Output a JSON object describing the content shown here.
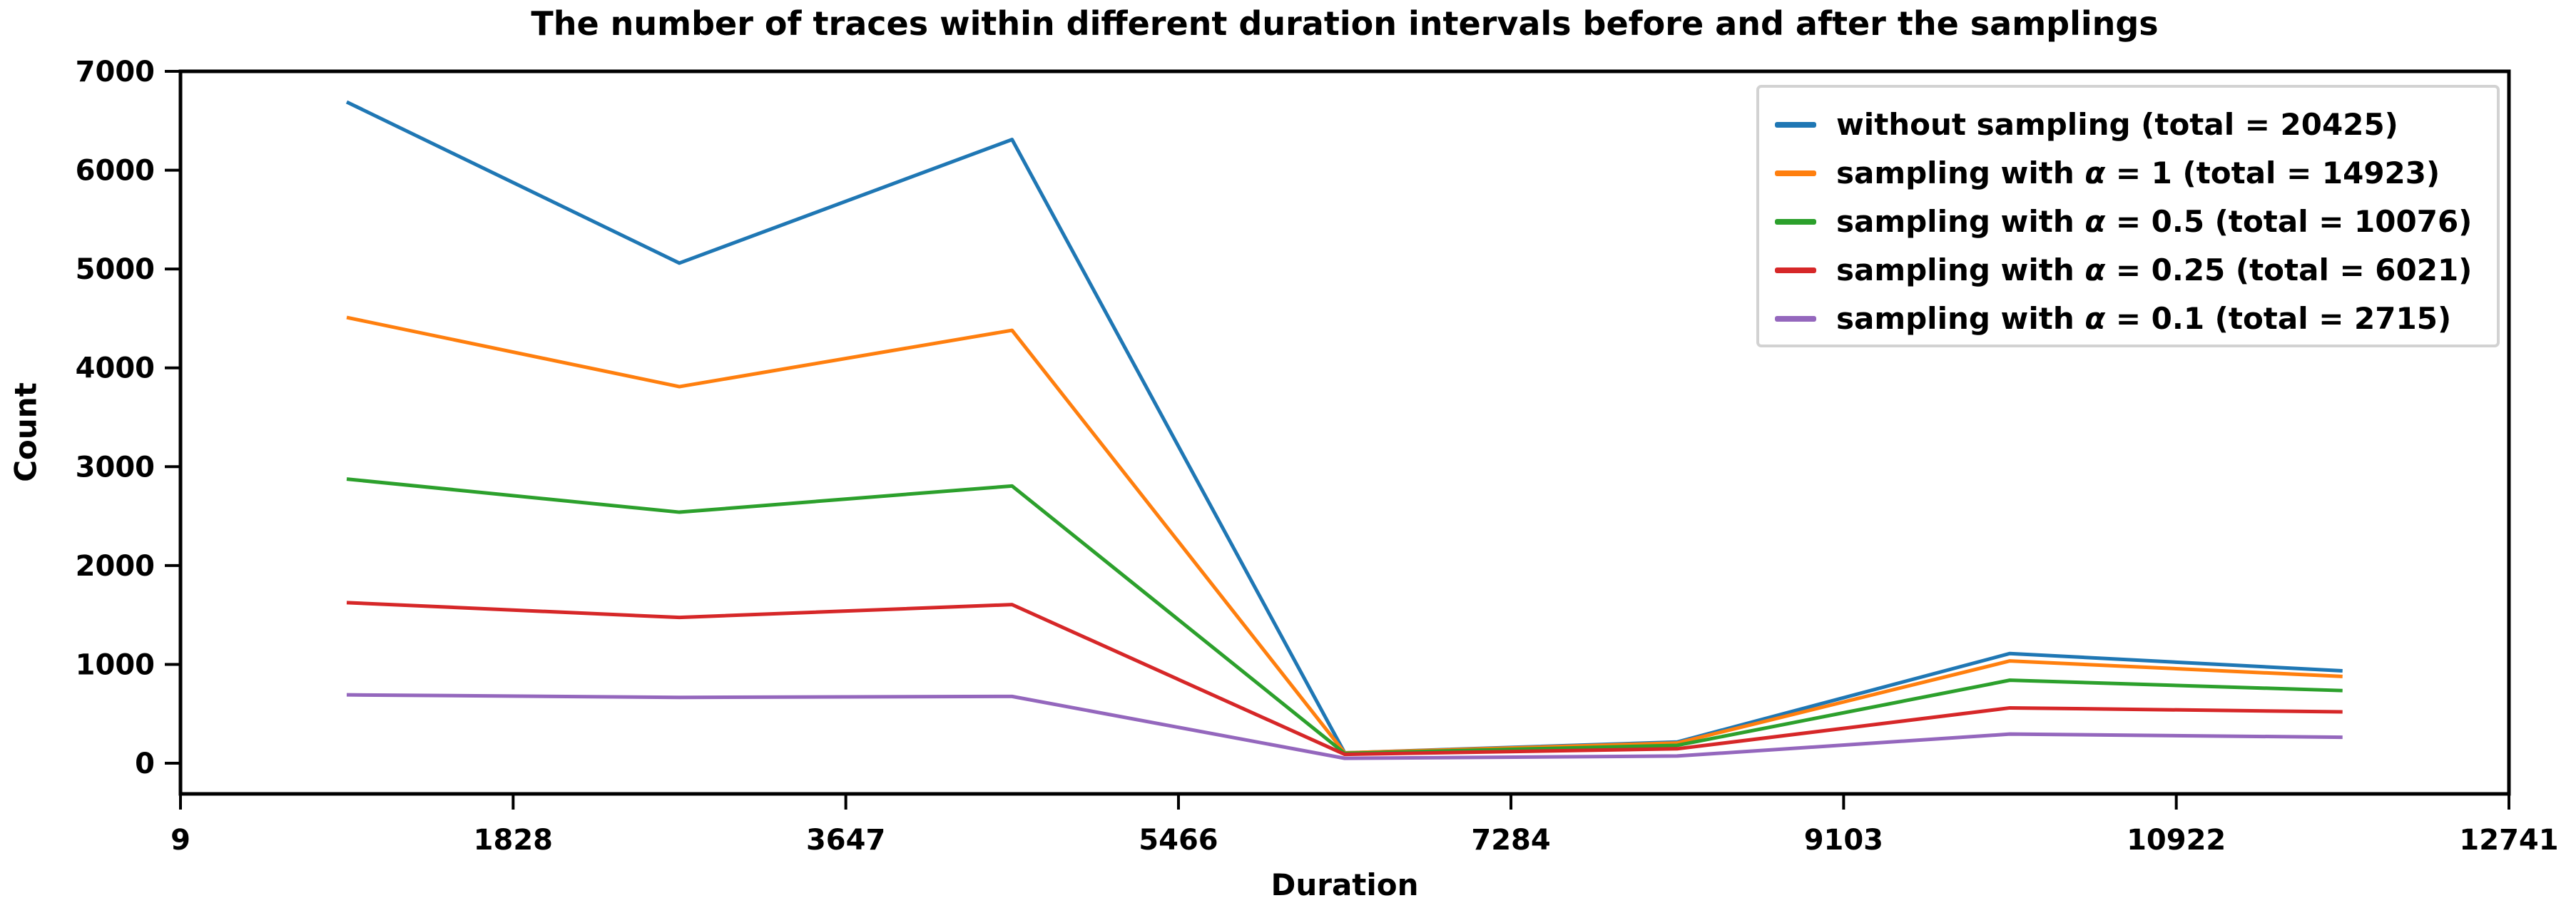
{
  "chart_data": {
    "type": "line",
    "title": "The number of traces within different duration intervals before and after the samplings",
    "xlabel": "Duration",
    "ylabel": "Count",
    "x_ticks": [
      9,
      1828,
      3647,
      5466,
      7284,
      9103,
      10922,
      12741
    ],
    "y_ticks": [
      0,
      1000,
      2000,
      3000,
      4000,
      5000,
      6000,
      7000
    ],
    "xlim": [
      9,
      12741
    ],
    "ylim": [
      -310,
      7000
    ],
    "grid": false,
    "legend_position": "upper right",
    "x": [
      918,
      2737,
      4556,
      6375,
      8193,
      10012,
      11831
    ],
    "series": [
      {
        "name": "without sampling (total = 20425)",
        "color": "#1f77b4",
        "total": 20425,
        "values": [
          6690,
          5060,
          6310,
          105,
          215,
          1110,
          935
        ]
      },
      {
        "name": "sampling with α = 1 (total = 14923)",
        "color": "#ff7f0e",
        "total": 14923,
        "values": [
          4510,
          3810,
          4380,
          105,
          205,
          1035,
          878
        ]
      },
      {
        "name": "sampling with α = 0.5 (total = 10076)",
        "color": "#2ca02c",
        "total": 10076,
        "values": [
          2875,
          2540,
          2805,
          100,
          181,
          840,
          735
        ]
      },
      {
        "name": "sampling with α = 0.25 (total = 6021)",
        "color": "#d62728",
        "total": 6021,
        "values": [
          1625,
          1475,
          1605,
          90,
          146,
          560,
          520
        ]
      },
      {
        "name": "sampling with α = 0.1 (total = 2715)",
        "color": "#9467bd",
        "total": 2715,
        "values": [
          692,
          666,
          676,
          50,
          73,
          295,
          263
        ]
      }
    ]
  }
}
